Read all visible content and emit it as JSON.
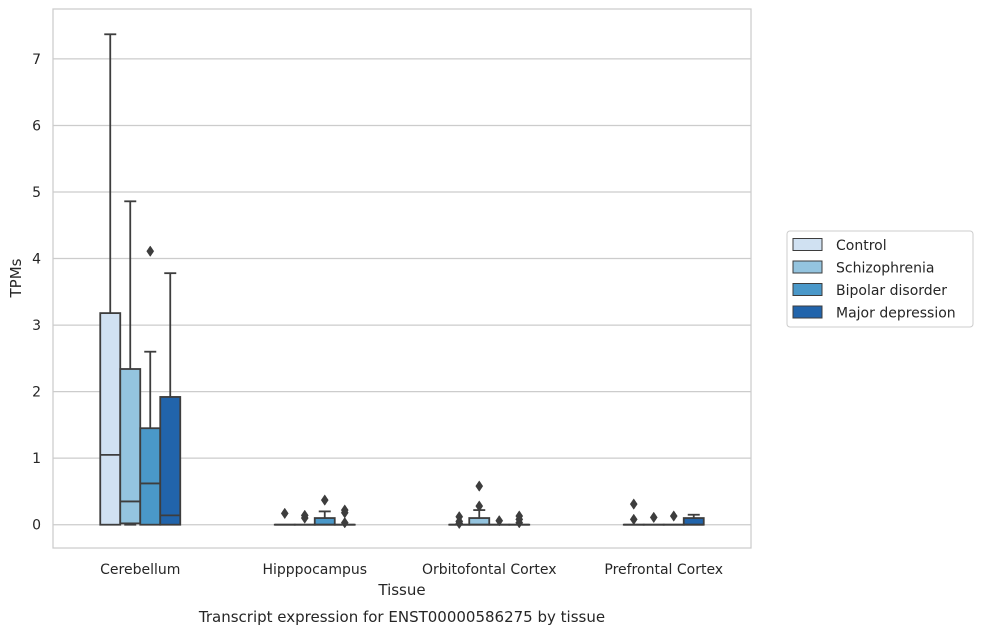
{
  "chart_data": {
    "type": "box",
    "title": "",
    "caption": "Transcript expression for ENST00000586275 by tissue",
    "xlabel": "Tissue",
    "ylabel": "TPMs",
    "ylim": [
      -0.35,
      7.75
    ],
    "yticks": [
      0,
      1,
      2,
      3,
      4,
      5,
      6,
      7
    ],
    "grid": "horizontal",
    "legend_position": "right",
    "categories": [
      "Cerebellum",
      "Hipppocampus",
      "Orbitofontal Cortex",
      "Prefrontal Cortex"
    ],
    "series": [
      {
        "name": "Control",
        "color": "#d0e1f2",
        "boxes": [
          {
            "min": 0,
            "q1": 0,
            "median": 1.05,
            "q3": 3.18,
            "max": 7.37,
            "outliers": []
          },
          {
            "min": 0,
            "q1": 0,
            "median": 0,
            "q3": 0,
            "max": 0,
            "outliers": [
              0.17
            ]
          },
          {
            "min": 0,
            "q1": 0,
            "median": 0,
            "q3": 0,
            "max": 0,
            "outliers": [
              0.02,
              0.05,
              0.12
            ]
          },
          {
            "min": 0,
            "q1": 0,
            "median": 0,
            "q3": 0,
            "max": 0,
            "outliers": [
              0.08,
              0.31
            ]
          }
        ]
      },
      {
        "name": "Schizophrenia",
        "color": "#94c4df",
        "boxes": [
          {
            "min": 0,
            "q1": 0.02,
            "median": 0.35,
            "q3": 2.34,
            "max": 4.86,
            "outliers": []
          },
          {
            "min": 0,
            "q1": 0,
            "median": 0,
            "q3": 0,
            "max": 0,
            "outliers": [
              0.1,
              0.14
            ]
          },
          {
            "min": 0,
            "q1": 0,
            "median": 0,
            "q3": 0.1,
            "max": 0.22,
            "outliers": [
              0.28,
              0.58
            ]
          },
          {
            "min": 0,
            "q1": 0,
            "median": 0,
            "q3": 0,
            "max": 0,
            "outliers": [
              0.11
            ]
          }
        ]
      },
      {
        "name": "Bipolar disorder",
        "color": "#4a98c9",
        "boxes": [
          {
            "min": 0,
            "q1": 0,
            "median": 0.62,
            "q3": 1.45,
            "max": 2.6,
            "outliers": [
              4.11
            ]
          },
          {
            "min": 0,
            "q1": 0,
            "median": 0,
            "q3": 0.1,
            "max": 0.2,
            "outliers": [
              0.37
            ]
          },
          {
            "min": 0,
            "q1": 0,
            "median": 0,
            "q3": 0,
            "max": 0,
            "outliers": [
              0.06
            ]
          },
          {
            "min": 0,
            "q1": 0,
            "median": 0,
            "q3": 0,
            "max": 0,
            "outliers": [
              0.13
            ]
          }
        ]
      },
      {
        "name": "Major depression",
        "color": "#2164ab",
        "boxes": [
          {
            "min": 0,
            "q1": 0,
            "median": 0.14,
            "q3": 1.92,
            "max": 3.78,
            "outliers": []
          },
          {
            "min": 0,
            "q1": 0,
            "median": 0,
            "q3": 0,
            "max": 0,
            "outliers": [
              0.03,
              0.18,
              0.22
            ]
          },
          {
            "min": 0,
            "q1": 0,
            "median": 0,
            "q3": 0,
            "max": 0,
            "outliers": [
              0.03,
              0.08,
              0.13
            ]
          },
          {
            "min": 0,
            "q1": 0,
            "median": 0,
            "q3": 0.1,
            "max": 0.15,
            "outliers": []
          }
        ]
      }
    ]
  }
}
